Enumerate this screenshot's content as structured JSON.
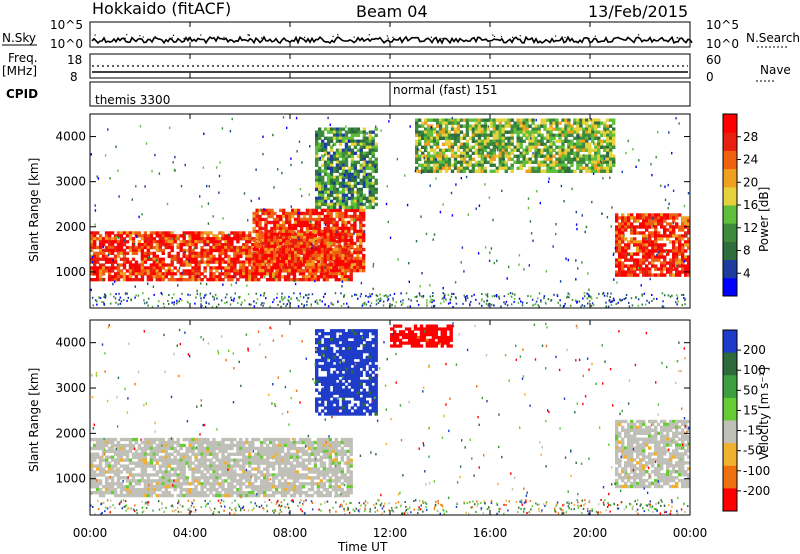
{
  "header": {
    "title": "Hokkaido (fitACF)",
    "beam": "Beam 04",
    "date": "13/Feb/2015"
  },
  "noise_panel": {
    "left_label": "N.Sky",
    "right_label": "N.Search",
    "left_ticks": [
      "10^5",
      "10^0"
    ],
    "right_ticks": [
      "10^5",
      "10^0"
    ]
  },
  "freq_panel": {
    "left_label_1": "Freq.",
    "left_label_2": "[MHz]",
    "right_label": "Nave",
    "left_ticks": [
      "18",
      "8"
    ],
    "right_ticks": [
      "60",
      "0"
    ]
  },
  "cpid_panel": {
    "label": "CPID",
    "segments": [
      {
        "name": "themis 3300",
        "start_hour": 0,
        "end_hour": 12
      },
      {
        "name": "normal (fast) 151",
        "start_hour": 12,
        "end_hour": 24
      }
    ]
  },
  "power_panel": {
    "ylabel": "Slant Range [km]",
    "yticks": [
      "1000",
      "2000",
      "3000",
      "4000"
    ],
    "colorbar_label": "Power [dB]",
    "colorbar_ticks": [
      "4",
      "8",
      "12",
      "16",
      "20",
      "24",
      "28"
    ],
    "colors": [
      "#0000ff",
      "#1c3ca0",
      "#2e6e3c",
      "#3d8a3d",
      "#5fbf3a",
      "#e6d23c",
      "#f0a020",
      "#f06010",
      "#e82010",
      "#ff0000"
    ]
  },
  "velocity_panel": {
    "ylabel": "Slant Range [km]",
    "yticks": [
      "1000",
      "2000",
      "3000",
      "4000"
    ],
    "colorbar_label": "Velocity [m s⁻¹]",
    "colorbar_ticks": [
      "200",
      "100",
      "50",
      "15",
      "-15",
      "-50",
      "-100",
      "-200"
    ],
    "colors": [
      "#1f3cc8",
      "#2f6a3c",
      "#3da040",
      "#66cc33",
      "#c0c0b8",
      "#f0b030",
      "#f07010",
      "#ff0000"
    ]
  },
  "xaxis": {
    "label": "Time UT",
    "ticks": [
      "00:00",
      "04:00",
      "08:00",
      "12:00",
      "16:00",
      "20:00",
      "00:00"
    ]
  },
  "chart_data": [
    {
      "type": "heatmap",
      "title": "Hokkaido (fitACF) Beam 04 13/Feb/2015",
      "quantity": "Power",
      "units": "dB",
      "xlabel": "Time UT",
      "ylabel": "Slant Range [km]",
      "xlim_hours": [
        0,
        24
      ],
      "ylim": [
        200,
        4500
      ],
      "color_range": [
        0,
        30
      ],
      "echo_regions": [
        {
          "start_hour": 0.0,
          "end_hour": 10.5,
          "range_km": [
            800,
            1900
          ],
          "power_db": 26
        },
        {
          "start_hour": 6.5,
          "end_hour": 11.0,
          "range_km": [
            1000,
            2400
          ],
          "power_db": 28
        },
        {
          "start_hour": 9.0,
          "end_hour": 11.5,
          "range_km": [
            2400,
            4200
          ],
          "power_db": 10
        },
        {
          "start_hour": 13.0,
          "end_hour": 21.0,
          "range_km": [
            3200,
            4400
          ],
          "power_db": 12
        },
        {
          "start_hour": 21.0,
          "end_hour": 24.0,
          "range_km": [
            900,
            2300
          ],
          "power_db": 27
        }
      ]
    },
    {
      "type": "heatmap",
      "title": "Hokkaido (fitACF) Beam 04 13/Feb/2015",
      "quantity": "Velocity",
      "units": "m s^-1",
      "xlabel": "Time UT",
      "ylabel": "Slant Range [km]",
      "xlim_hours": [
        0,
        24
      ],
      "ylim": [
        200,
        4500
      ],
      "color_range": [
        -200,
        200
      ],
      "echo_regions": [
        {
          "start_hour": 0.0,
          "end_hour": 10.5,
          "range_km": [
            600,
            1900
          ],
          "velocity": 0
        },
        {
          "start_hour": 9.0,
          "end_hour": 11.5,
          "range_km": [
            2400,
            4300
          ],
          "velocity": 150
        },
        {
          "start_hour": 12.0,
          "end_hour": 14.5,
          "range_km": [
            3900,
            4400
          ],
          "velocity": -180
        },
        {
          "start_hour": 21.0,
          "end_hour": 24.0,
          "range_km": [
            800,
            2300
          ],
          "velocity": 20
        }
      ]
    }
  ]
}
